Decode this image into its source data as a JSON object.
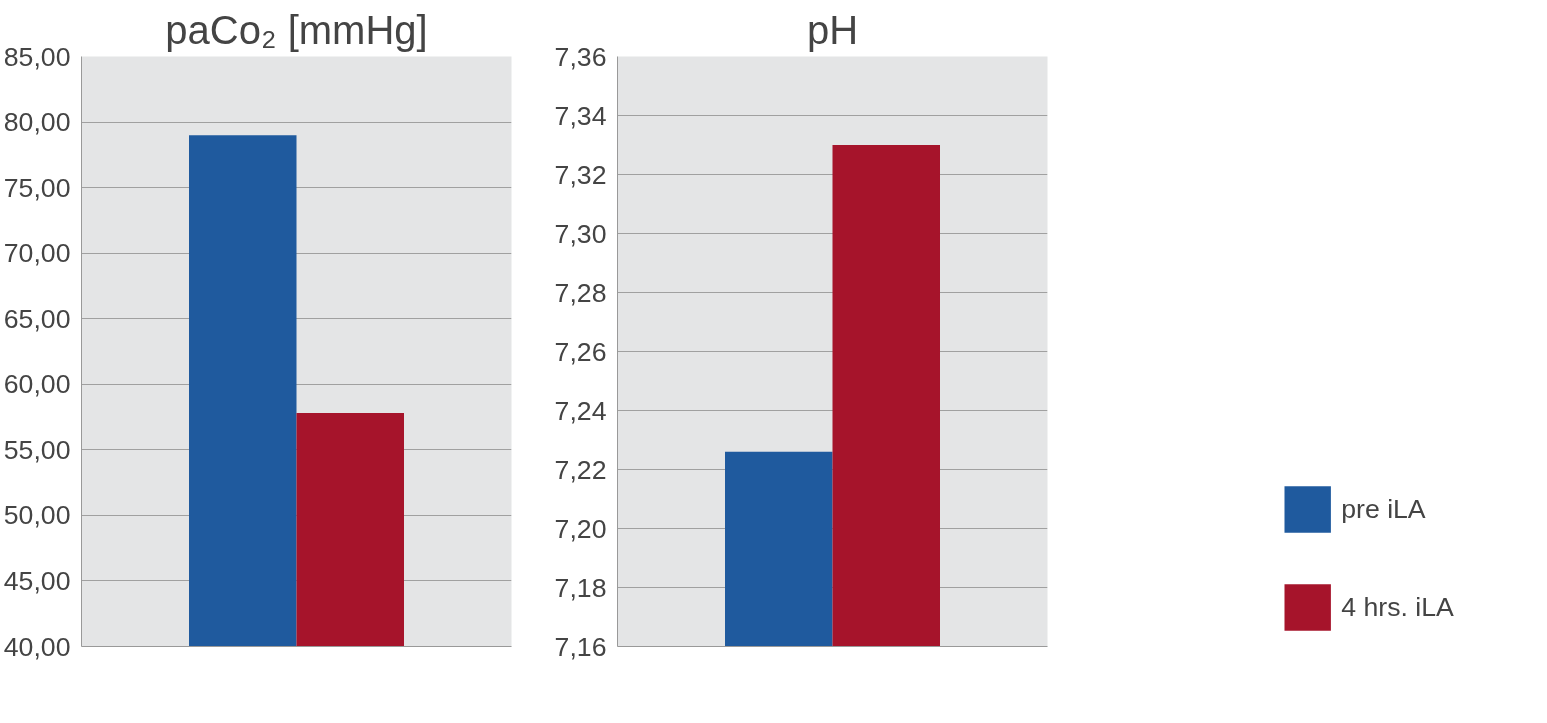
{
  "chart_data": [
    {
      "type": "bar",
      "title": "paCo₂ [mmHg]",
      "categories": [
        null
      ],
      "series": [
        {
          "color": "#1f5a9e",
          "values": [
            79.0
          ]
        },
        {
          "color": "#a6142b",
          "values": [
            57.8
          ]
        }
      ],
      "ylim": [
        40,
        85
      ],
      "yticks": [
        {
          "value": 40,
          "label": "40,00"
        },
        {
          "value": 45,
          "label": "45,00"
        },
        {
          "value": 50,
          "label": "50,00"
        },
        {
          "value": 55,
          "label": "55,00"
        },
        {
          "value": 60,
          "label": "60,00"
        },
        {
          "value": 65,
          "label": "65,00"
        },
        {
          "value": 70,
          "label": "70,00"
        },
        {
          "value": 75,
          "label": "75,00"
        },
        {
          "value": 80,
          "label": "80,00"
        },
        {
          "value": 85,
          "label": "85,00"
        }
      ],
      "grid": "y",
      "legend": false,
      "tick_labels": "y"
    },
    {
      "type": "bar",
      "title": "pH",
      "categories": [
        null
      ],
      "series": [
        {
          "name": "pre iLA",
          "color": "#1f5a9e",
          "values": [
            7.226
          ]
        },
        {
          "name": "4 hrs. iLA",
          "color": "#a6142b",
          "values": [
            7.33
          ]
        }
      ],
      "ylim": [
        7.16,
        7.36
      ],
      "yticks": [
        {
          "value": 7.16,
          "label": "7,16"
        },
        {
          "value": 7.18,
          "label": "7,18"
        },
        {
          "value": 7.2,
          "label": "7,20"
        },
        {
          "value": 7.22,
          "label": "7,22"
        },
        {
          "value": 7.24,
          "label": "7,24"
        },
        {
          "value": 7.26,
          "label": "7,26"
        },
        {
          "value": 7.28,
          "label": "7,28"
        },
        {
          "value": 7.3,
          "label": "7,30"
        },
        {
          "value": 7.32,
          "label": "7,32"
        },
        {
          "value": 7.34,
          "label": "7,34"
        },
        {
          "value": 7.36,
          "label": "7,36"
        }
      ],
      "grid": "y",
      "legend": "bottom right",
      "tick_labels": "y"
    }
  ]
}
